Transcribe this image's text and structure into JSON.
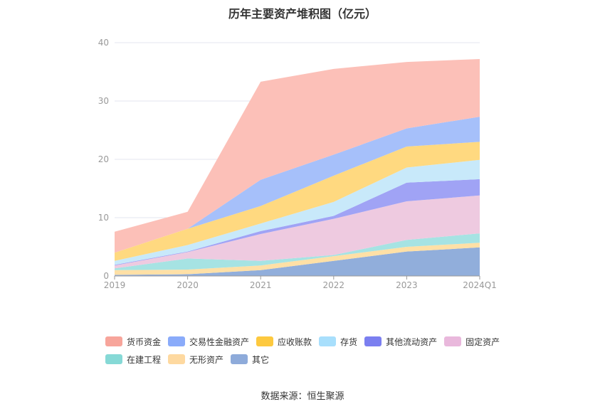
{
  "title": "历年主要资产堆积图（亿元）",
  "source": "数据来源：恒生聚源",
  "chart_data": {
    "type": "area",
    "stacked": true,
    "title": "历年主要资产堆积图（亿元）",
    "categories": [
      "2019",
      "2020",
      "2021",
      "2022",
      "2023",
      "2024Q1"
    ],
    "ylim": [
      0,
      40
    ],
    "yticks": [
      0,
      10,
      20,
      30,
      40
    ],
    "grid": true,
    "legend_position": "bottom",
    "series": [
      {
        "name": "其它",
        "color": "#91aedb",
        "values": [
          0.2,
          0.3,
          1.0,
          2.6,
          4.2,
          4.9
        ]
      },
      {
        "name": "无形资产",
        "color": "#ffe0a6",
        "values": [
          0.8,
          0.8,
          0.8,
          0.8,
          0.8,
          0.8
        ]
      },
      {
        "name": "在建工程",
        "color": "#a6e3e3",
        "values": [
          0.3,
          1.9,
          0.8,
          0.2,
          1.2,
          1.6
        ]
      },
      {
        "name": "固定资产",
        "color": "#eecae0",
        "values": [
          0.5,
          1.1,
          4.6,
          6.2,
          6.6,
          6.5
        ]
      },
      {
        "name": "其他流动资产",
        "color": "#a0a3f5",
        "values": [
          0.1,
          0.1,
          0.5,
          0.5,
          3.2,
          2.8
        ]
      },
      {
        "name": "存货",
        "color": "#c8e9fa",
        "values": [
          0.7,
          1.1,
          1.3,
          2.4,
          2.6,
          3.3
        ]
      },
      {
        "name": "应收账款",
        "color": "#ffd980",
        "values": [
          1.4,
          2.8,
          3.0,
          4.5,
          3.6,
          3.1
        ]
      },
      {
        "name": "交易性金融资产",
        "color": "#a6c0fa",
        "values": [
          0,
          0,
          4.5,
          3.6,
          3.1,
          4.3
        ]
      },
      {
        "name": "货币资金",
        "color": "#fcc0b8",
        "values": [
          3.6,
          2.9,
          16.8,
          14.7,
          11.4,
          9.9
        ]
      }
    ]
  },
  "legend": [
    {
      "label": "货币资金",
      "color": "#f7a59b"
    },
    {
      "label": "交易性金融资产",
      "color": "#8aabfa"
    },
    {
      "label": "应收账款",
      "color": "#fdc93f"
    },
    {
      "label": "存货",
      "color": "#a8dffc"
    },
    {
      "label": "其他流动资产",
      "color": "#7b7ff0"
    },
    {
      "label": "固定资产",
      "color": "#e9b8dc"
    },
    {
      "label": "在建工程",
      "color": "#86d9d6"
    },
    {
      "label": "无形资产",
      "color": "#fed9a0"
    },
    {
      "label": "其它",
      "color": "#8eabda"
    }
  ]
}
